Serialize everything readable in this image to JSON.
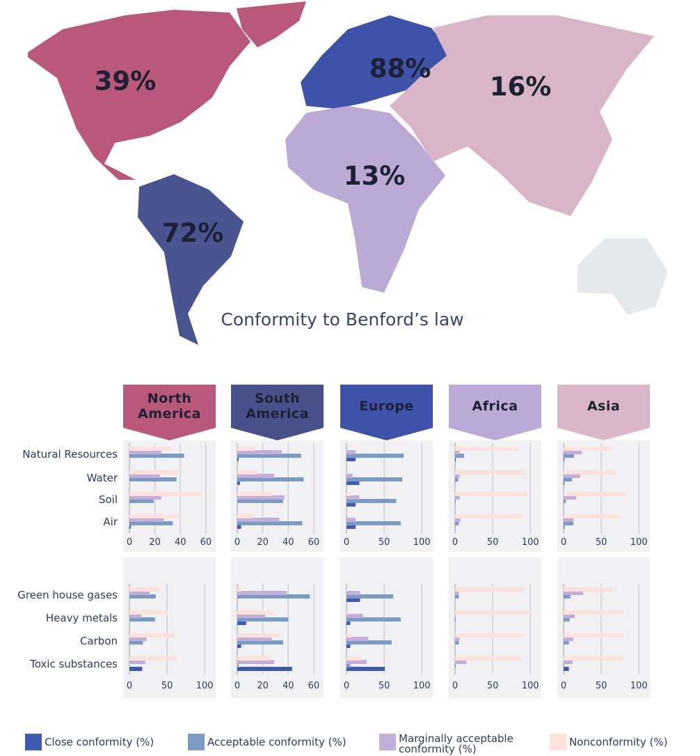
{
  "map": {
    "title": "Conformity  to Benford’s law",
    "regions": [
      {
        "label": "39%",
        "color": "#b9587a"
      },
      {
        "label": "72%",
        "color": "#4a5590"
      },
      {
        "label": "88%",
        "color": "#3f52aa"
      },
      {
        "label": "13%",
        "color": "#bca9d5"
      },
      {
        "label": "16%",
        "color": "#d8b5c7"
      }
    ]
  },
  "chart_data": [
    {
      "type": "bar",
      "orientation": "horizontal",
      "title": "North America",
      "header_color": "#b9587a",
      "categories": [
        "Natural Resources",
        "Water",
        "Soil",
        "Air"
      ],
      "xlim": [
        0,
        65
      ],
      "xticks": [
        0,
        20,
        40,
        60
      ],
      "grid": true,
      "series": [
        {
          "name": "Close conformity (%)",
          "color": "#3f5bb5",
          "values": [
            0,
            0,
            0,
            1
          ]
        },
        {
          "name": "Acceptable conformity (%)",
          "color": "#7c9ac6",
          "values": [
            43,
            37,
            19,
            34
          ]
        },
        {
          "name": "Marginally acceptable conformity (%)",
          "color": "#c1afd9",
          "values": [
            25,
            24,
            25,
            27
          ]
        },
        {
          "name": "Nonconformity (%)",
          "color": "#fde1dd",
          "values": [
            33,
            39,
            57,
            40
          ]
        }
      ]
    },
    {
      "type": "bar",
      "orientation": "horizontal",
      "title": "South America",
      "header_color": "#475089",
      "xlim": [
        0,
        65
      ],
      "xticks": [
        0,
        20,
        40,
        60
      ],
      "grid": true,
      "series": [
        {
          "values": [
            1,
            2,
            0,
            3
          ]
        },
        {
          "values": [
            50,
            52,
            36,
            51
          ]
        },
        {
          "values": [
            35,
            29,
            37,
            33
          ]
        },
        {
          "values": [
            14,
            16,
            27,
            12
          ]
        }
      ]
    },
    {
      "type": "bar",
      "orientation": "horizontal",
      "title": "Europe",
      "header_color": "#3d52a8",
      "xlim": [
        0,
        110
      ],
      "xticks": [
        0,
        50,
        100
      ],
      "grid": true,
      "series": [
        {
          "values": [
            12,
            17,
            12,
            12
          ]
        },
        {
          "values": [
            76,
            74,
            66,
            72
          ]
        },
        {
          "values": [
            12,
            8,
            17,
            12
          ]
        },
        {
          "values": [
            0,
            0,
            5,
            0
          ]
        }
      ]
    },
    {
      "type": "bar",
      "orientation": "horizontal",
      "title": "Africa",
      "header_color": "#bda9d7",
      "xlim": [
        0,
        110
      ],
      "xticks": [
        0,
        50,
        100
      ],
      "grid": true,
      "series": [
        {
          "values": [
            1,
            0,
            0,
            0
          ]
        },
        {
          "values": [
            12,
            4,
            1,
            5
          ]
        },
        {
          "values": [
            6,
            6,
            6,
            7
          ]
        },
        {
          "values": [
            84,
            93,
            96,
            90
          ]
        }
      ]
    },
    {
      "type": "bar",
      "orientation": "horizontal",
      "title": "Asia",
      "header_color": "#d9b6c8",
      "xlim": [
        0,
        110
      ],
      "xticks": [
        0,
        50,
        100
      ],
      "grid": true,
      "series": [
        {
          "values": [
            1,
            1,
            0,
            1
          ]
        },
        {
          "values": [
            14,
            11,
            3,
            13
          ]
        },
        {
          "values": [
            24,
            22,
            17,
            13
          ]
        },
        {
          "values": [
            64,
            69,
            82,
            74
          ]
        }
      ]
    },
    {
      "type": "bar",
      "orientation": "horizontal",
      "categories": [
        "Green house gases",
        "Heavy metals",
        "Carbon",
        "Toxic substances"
      ],
      "xlim": [
        0,
        110
      ],
      "xticks": [
        0,
        50,
        100
      ],
      "grid": true,
      "series": [
        {
          "values": [
            0,
            0,
            0,
            17
          ]
        },
        {
          "values": [
            35,
            34,
            18,
            0
          ]
        },
        {
          "values": [
            27,
            16,
            23,
            21
          ]
        },
        {
          "values": [
            39,
            51,
            59,
            63
          ]
        }
      ]
    },
    {
      "type": "bar",
      "orientation": "horizontal",
      "xlim": [
        0,
        65
      ],
      "xticks": [
        0,
        20,
        40,
        60
      ],
      "grid": true,
      "series": [
        {
          "values": [
            0,
            7,
            3,
            43
          ]
        },
        {
          "values": [
            57,
            40,
            36,
            1
          ]
        },
        {
          "values": [
            39,
            22,
            27,
            29
          ]
        },
        {
          "values": [
            3,
            29,
            33,
            25
          ]
        }
      ]
    },
    {
      "type": "bar",
      "orientation": "horizontal",
      "xlim": [
        0,
        110
      ],
      "xticks": [
        0,
        50,
        100
      ],
      "grid": true,
      "series": [
        {
          "values": [
            18,
            5,
            5,
            51
          ]
        },
        {
          "values": [
            62,
            72,
            60,
            5
          ]
        },
        {
          "values": [
            18,
            22,
            29,
            27
          ]
        },
        {
          "values": [
            2,
            2,
            7,
            20
          ]
        }
      ]
    },
    {
      "type": "bar",
      "orientation": "horizontal",
      "xlim": [
        0,
        110
      ],
      "xticks": [
        0,
        50,
        100
      ],
      "grid": true,
      "series": [
        {
          "values": [
            0,
            0,
            0,
            0
          ]
        },
        {
          "values": [
            5,
            1,
            5,
            1
          ]
        },
        {
          "values": [
            5,
            0,
            6,
            15
          ]
        },
        {
          "values": [
            93,
            100,
            90,
            87
          ]
        }
      ]
    },
    {
      "type": "bar",
      "orientation": "horizontal",
      "xlim": [
        0,
        110
      ],
      "xticks": [
        0,
        50,
        100
      ],
      "grid": true,
      "series": [
        {
          "values": [
            0,
            0,
            0,
            7
          ]
        },
        {
          "values": [
            9,
            8,
            7,
            1
          ]
        },
        {
          "values": [
            26,
            15,
            13,
            12
          ]
        },
        {
          "values": [
            65,
            80,
            80,
            79
          ]
        }
      ]
    }
  ]
}
